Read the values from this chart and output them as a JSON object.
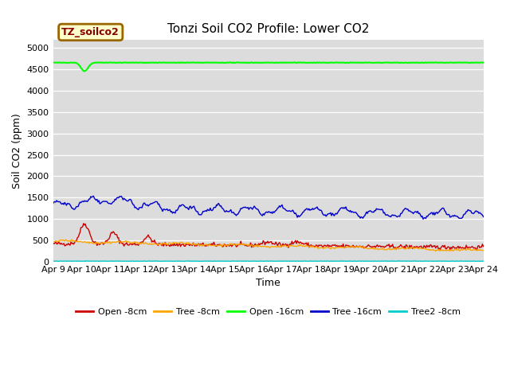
{
  "title": "Tonzi Soil CO2 Profile: Lower CO2",
  "xlabel": "Time",
  "ylabel": "Soil CO2 (ppm)",
  "ylim": [
    0,
    5200
  ],
  "yticks": [
    0,
    500,
    1000,
    1500,
    2000,
    2500,
    3000,
    3500,
    4000,
    4500,
    5000
  ],
  "bg_color": "#dcdcdc",
  "fig_color": "#ffffff",
  "legend_label": "TZ_soilco2",
  "series": {
    "open_8cm": {
      "label": "Open -8cm",
      "color": "#cc0000",
      "linewidth": 1.0
    },
    "tree_8cm": {
      "label": "Tree -8cm",
      "color": "#ffa500",
      "linewidth": 1.0
    },
    "open_16cm": {
      "label": "Open -16cm",
      "color": "#00ff00",
      "linewidth": 1.5
    },
    "tree_16cm": {
      "label": "Tree -16cm",
      "color": "#0000cc",
      "linewidth": 1.0
    },
    "tree2_8cm": {
      "label": "Tree2 -8cm",
      "color": "#00cccc",
      "linewidth": 1.0
    }
  },
  "xticklabels": [
    "Apr 9",
    "Apr 10",
    "Apr 11",
    "Apr 12",
    "Apr 13",
    "Apr 14",
    "Apr 15",
    "Apr 16",
    "Apr 17",
    "Apr 18",
    "Apr 19",
    "Apr 20",
    "Apr 21",
    "Apr 22",
    "Apr 23",
    "Apr 24"
  ],
  "open_16cm_value": 4660,
  "tree2_8cm_value": 10,
  "n_points": 480
}
